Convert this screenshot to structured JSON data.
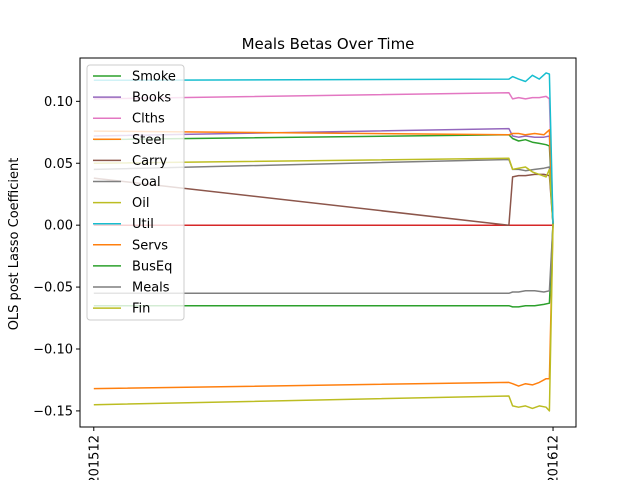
{
  "chart_data": {
    "type": "line",
    "title": "Meals Betas Over Time",
    "xlabel": "",
    "ylabel": "OLS post Lasso Coefficient",
    "x_tick_labels": [
      "201512",
      "201612"
    ],
    "y_ticks": [
      -0.15,
      -0.1,
      -0.05,
      0.0,
      0.05,
      0.1
    ],
    "y_tick_labels": [
      "−0.15",
      "−0.10",
      "−0.05",
      "0.00",
      "0.05",
      "0.10"
    ],
    "ylim": [
      -0.163,
      0.135
    ],
    "xlim": [
      -0.03,
      1.05
    ],
    "legend_position": "upper left",
    "grid": false,
    "series": [
      {
        "name": "Smoke",
        "color": "#2ca02c",
        "x": [
          0,
          0.904,
          0.912,
          0.925,
          0.94,
          0.955,
          0.97,
          0.985,
          0.992,
          1.0
        ],
        "y": [
          0.069,
          0.073,
          0.07,
          0.068,
          0.069,
          0.067,
          0.066,
          0.065,
          0.064,
          0.001
        ]
      },
      {
        "name": "Books",
        "color": "#9467bd",
        "x": [
          0,
          0.904,
          0.912,
          0.925,
          0.94,
          0.96,
          0.98,
          0.992,
          1.0
        ],
        "y": [
          0.072,
          0.078,
          0.072,
          0.071,
          0.072,
          0.071,
          0.071,
          0.072,
          0.001
        ]
      },
      {
        "name": "Clths",
        "color": "#e377c2",
        "x": [
          0,
          0.904,
          0.912,
          0.925,
          0.94,
          0.955,
          0.97,
          0.985,
          0.992,
          1.0
        ],
        "y": [
          0.102,
          0.107,
          0.102,
          0.103,
          0.102,
          0.103,
          0.103,
          0.104,
          0.102,
          0.001
        ]
      },
      {
        "name": "Steel",
        "color": "#ff7f0e",
        "x": [
          0,
          0.904,
          0.912,
          0.925,
          0.94,
          0.96,
          0.98,
          0.992,
          1.0
        ],
        "y": [
          0.076,
          0.073,
          0.074,
          0.074,
          0.073,
          0.074,
          0.073,
          0.077,
          0.001
        ]
      },
      {
        "name": "Carry",
        "color": "#8c564b",
        "x": [
          0,
          0.904,
          0.912,
          0.925,
          0.94,
          0.96,
          0.98,
          0.992,
          1.0
        ],
        "y": [
          0.038,
          0.0,
          0.039,
          0.04,
          0.04,
          0.041,
          0.041,
          0.04,
          0.001
        ]
      },
      {
        "name": "Coal",
        "color": "#7f7f7f",
        "x": [
          0,
          0.904,
          0.912,
          0.925,
          0.94,
          0.96,
          0.98,
          0.992,
          1.0
        ],
        "y": [
          0.045,
          0.053,
          0.045,
          0.045,
          0.044,
          0.045,
          0.046,
          0.047,
          0.001
        ]
      },
      {
        "name": "Oil",
        "color": "#bcbd22",
        "x": [
          0,
          0.904,
          0.912,
          0.925,
          0.94,
          0.955,
          0.97,
          0.985,
          0.992,
          1.0
        ],
        "y": [
          0.05,
          0.054,
          0.045,
          0.046,
          0.047,
          0.043,
          0.041,
          0.039,
          0.045,
          0.001
        ]
      },
      {
        "name": "Util",
        "color": "#17becf",
        "x": [
          0,
          0.904,
          0.912,
          0.925,
          0.94,
          0.955,
          0.97,
          0.985,
          0.992,
          1.0
        ],
        "y": [
          0.117,
          0.118,
          0.12,
          0.118,
          0.116,
          0.121,
          0.118,
          0.123,
          0.122,
          0.001
        ]
      },
      {
        "name": "Servs",
        "color": "#ff7f0e",
        "x": [
          0,
          0.904,
          0.912,
          0.925,
          0.94,
          0.955,
          0.97,
          0.985,
          0.992,
          1.0
        ],
        "y": [
          -0.132,
          -0.127,
          -0.128,
          -0.13,
          -0.128,
          -0.129,
          -0.127,
          -0.124,
          -0.124,
          0.001
        ]
      },
      {
        "name": "BusEq",
        "color": "#2ca02c",
        "x": [
          0,
          0.904,
          0.912,
          0.925,
          0.94,
          0.96,
          0.98,
          0.992,
          1.0
        ],
        "y": [
          -0.065,
          -0.065,
          -0.066,
          -0.066,
          -0.065,
          -0.065,
          -0.064,
          -0.063,
          0.001
        ]
      },
      {
        "name": "Meals",
        "color": "#7f7f7f",
        "x": [
          0,
          0.904,
          0.912,
          0.925,
          0.94,
          0.96,
          0.98,
          0.992,
          1.0
        ],
        "y": [
          -0.055,
          -0.055,
          -0.054,
          -0.054,
          -0.053,
          -0.053,
          -0.054,
          -0.053,
          0.001
        ]
      },
      {
        "name": "Fin",
        "color": "#bcbd22",
        "x": [
          0,
          0.904,
          0.912,
          0.925,
          0.94,
          0.955,
          0.97,
          0.985,
          0.992,
          1.0
        ],
        "y": [
          -0.145,
          -0.138,
          -0.146,
          -0.147,
          -0.146,
          -0.148,
          -0.146,
          -0.147,
          -0.15,
          0.001
        ]
      }
    ],
    "extra_lines": [
      {
        "color": "#1f77b4",
        "x": [
          0,
          1.0
        ],
        "y": [
          0.0,
          0.0
        ]
      },
      {
        "color": "#d62728",
        "x": [
          0,
          1.0
        ],
        "y": [
          0.0,
          0.0
        ]
      }
    ]
  }
}
